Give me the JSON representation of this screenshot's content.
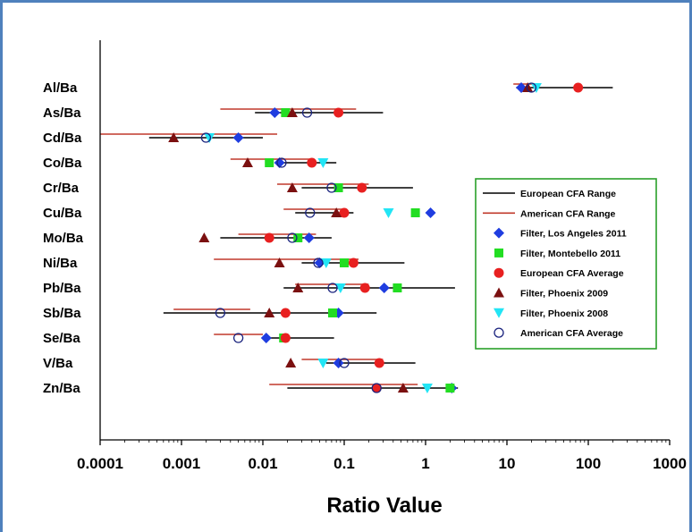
{
  "chart_data": {
    "type": "scatter",
    "title": "",
    "xlabel": "Ratio Value",
    "ylabel": "",
    "x_scale": "log",
    "xlim": [
      0.0001,
      1000
    ],
    "x_ticks": [
      "0.0001",
      "0.001",
      "0.01",
      "0.1",
      "1",
      "10",
      "100",
      "1000"
    ],
    "categories": [
      "Al/Ba",
      "As/Ba",
      "Cd/Ba",
      "Co/Ba",
      "Cr/Ba",
      "Cu/Ba",
      "Mo/Ba",
      "Ni/Ba",
      "Pb/Ba",
      "Sb/Ba",
      "Se/Ba",
      "V/Ba",
      "Zn/Ba"
    ],
    "grid": false,
    "legend_position": "right",
    "ranges": [
      {
        "name": "European CFA Range",
        "color": "#000000",
        "values": [
          [
            13,
            200
          ],
          [
            0.008,
            0.3
          ],
          [
            0.0004,
            0.01
          ],
          [
            0.015,
            0.08
          ],
          [
            0.03,
            0.7
          ],
          [
            0.025,
            0.13
          ],
          [
            0.003,
            0.07
          ],
          [
            0.03,
            0.55
          ],
          [
            0.018,
            2.3
          ],
          [
            0.0006,
            0.25
          ],
          [
            0.012,
            0.075
          ],
          [
            0.06,
            0.75
          ],
          [
            0.02,
            2.5
          ]
        ]
      },
      {
        "name": "American CFA Range",
        "color": "#c0392b",
        "values": [
          [
            12,
            22
          ],
          [
            0.003,
            0.14
          ],
          [
            0.0001,
            0.015
          ],
          [
            0.004,
            0.04
          ],
          [
            0.015,
            0.2
          ],
          [
            0.018,
            0.1
          ],
          [
            0.005,
            0.045
          ],
          [
            0.0025,
            0.15
          ],
          [
            0.025,
            0.2
          ],
          [
            0.0008,
            0.007
          ],
          [
            0.0025,
            0.01
          ],
          [
            0.03,
            0.3
          ],
          [
            0.012,
            0.8
          ]
        ]
      }
    ],
    "series": [
      {
        "name": "Filter, Los Angeles 2011",
        "marker": "diamond",
        "color": "#1f3de0",
        "values": [
          15,
          0.014,
          0.005,
          0.016,
          null,
          1.15,
          0.037,
          0.05,
          0.31,
          0.085,
          0.011,
          0.085,
          2.1
        ]
      },
      {
        "name": "Filter, Montebello 2011",
        "marker": "square",
        "color": "#22dd22",
        "values": [
          null,
          0.019,
          null,
          0.012,
          0.085,
          0.75,
          0.027,
          0.1,
          0.45,
          0.072,
          0.018,
          null,
          2.0
        ]
      },
      {
        "name": "European CFA Average",
        "marker": "circle",
        "color": "#e82020",
        "values": [
          75,
          0.085,
          null,
          0.04,
          0.165,
          0.1,
          0.012,
          0.13,
          0.18,
          0.019,
          0.019,
          0.27,
          0.25
        ]
      },
      {
        "name": "Filter, Phoenix 2009",
        "marker": "triangle-up",
        "color": "#7b1010",
        "values": [
          18,
          0.023,
          0.0008,
          0.0065,
          0.023,
          0.08,
          0.0019,
          0.016,
          0.027,
          0.012,
          null,
          0.022,
          0.53
        ]
      },
      {
        "name": "Filter, Phoenix 2008",
        "marker": "triangle-down",
        "color": "#22e5f5",
        "values": [
          23,
          null,
          0.0022,
          0.055,
          null,
          0.35,
          null,
          0.06,
          0.09,
          null,
          null,
          0.055,
          1.05
        ]
      },
      {
        "name": "American CFA Average",
        "marker": "open-circle",
        "color": "#1a237e",
        "values": [
          20,
          0.035,
          0.002,
          0.017,
          0.07,
          0.038,
          0.023,
          0.048,
          0.072,
          0.003,
          0.005,
          0.1,
          0.25
        ]
      }
    ]
  }
}
